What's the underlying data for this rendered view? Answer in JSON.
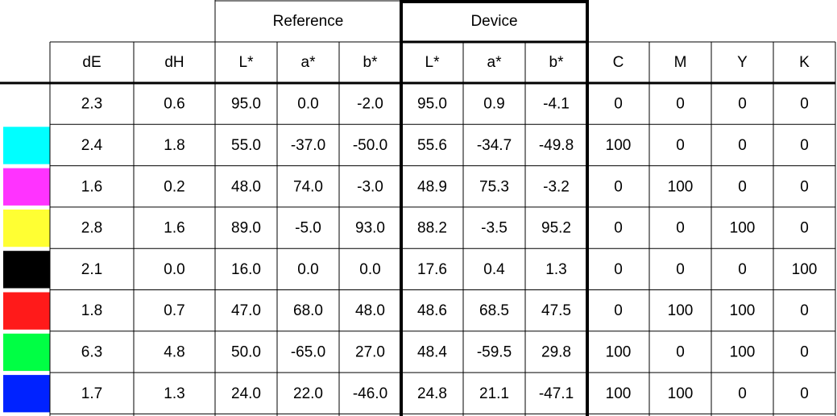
{
  "groups": [
    "Reference",
    "Device"
  ],
  "header": [
    "dE",
    "dH",
    "L*",
    "a*",
    "b*",
    "L*",
    "a*",
    "b*",
    "C",
    "M",
    "Y",
    "K"
  ],
  "rows": [
    {
      "swatch": null,
      "cells": [
        "2.3",
        "0.6",
        "95.0",
        "0.0",
        "-2.0",
        "95.0",
        "0.9",
        "-4.1",
        "0",
        "0",
        "0",
        "0"
      ]
    },
    {
      "swatch": "#00ffff",
      "cells": [
        "2.4",
        "1.8",
        "55.0",
        "-37.0",
        "-50.0",
        "55.6",
        "-34.7",
        "-49.8",
        "100",
        "0",
        "0",
        "0"
      ]
    },
    {
      "swatch": "#ff33ff",
      "cells": [
        "1.6",
        "0.2",
        "48.0",
        "74.0",
        "-3.0",
        "48.9",
        "75.3",
        "-3.2",
        "0",
        "100",
        "0",
        "0"
      ]
    },
    {
      "swatch": "#ffff33",
      "cells": [
        "2.8",
        "1.6",
        "89.0",
        "-5.0",
        "93.0",
        "88.2",
        "-3.5",
        "95.2",
        "0",
        "0",
        "100",
        "0"
      ]
    },
    {
      "swatch": "#000000",
      "cells": [
        "2.1",
        "0.0",
        "16.0",
        "0.0",
        "0.0",
        "17.6",
        "0.4",
        "1.3",
        "0",
        "0",
        "0",
        "100"
      ]
    },
    {
      "swatch": "#ff1a1a",
      "cells": [
        "1.8",
        "0.7",
        "47.0",
        "68.0",
        "48.0",
        "48.6",
        "68.5",
        "47.5",
        "0",
        "100",
        "100",
        "0"
      ]
    },
    {
      "swatch": "#00ff44",
      "cells": [
        "6.3",
        "4.8",
        "50.0",
        "-65.0",
        "27.0",
        "48.4",
        "-59.5",
        "29.8",
        "100",
        "0",
        "100",
        "0"
      ]
    },
    {
      "swatch": "#0022ff",
      "cells": [
        "1.7",
        "1.3",
        "24.0",
        "22.0",
        "-46.0",
        "24.8",
        "21.1",
        "-47.1",
        "100",
        "100",
        "0",
        "0"
      ]
    }
  ]
}
